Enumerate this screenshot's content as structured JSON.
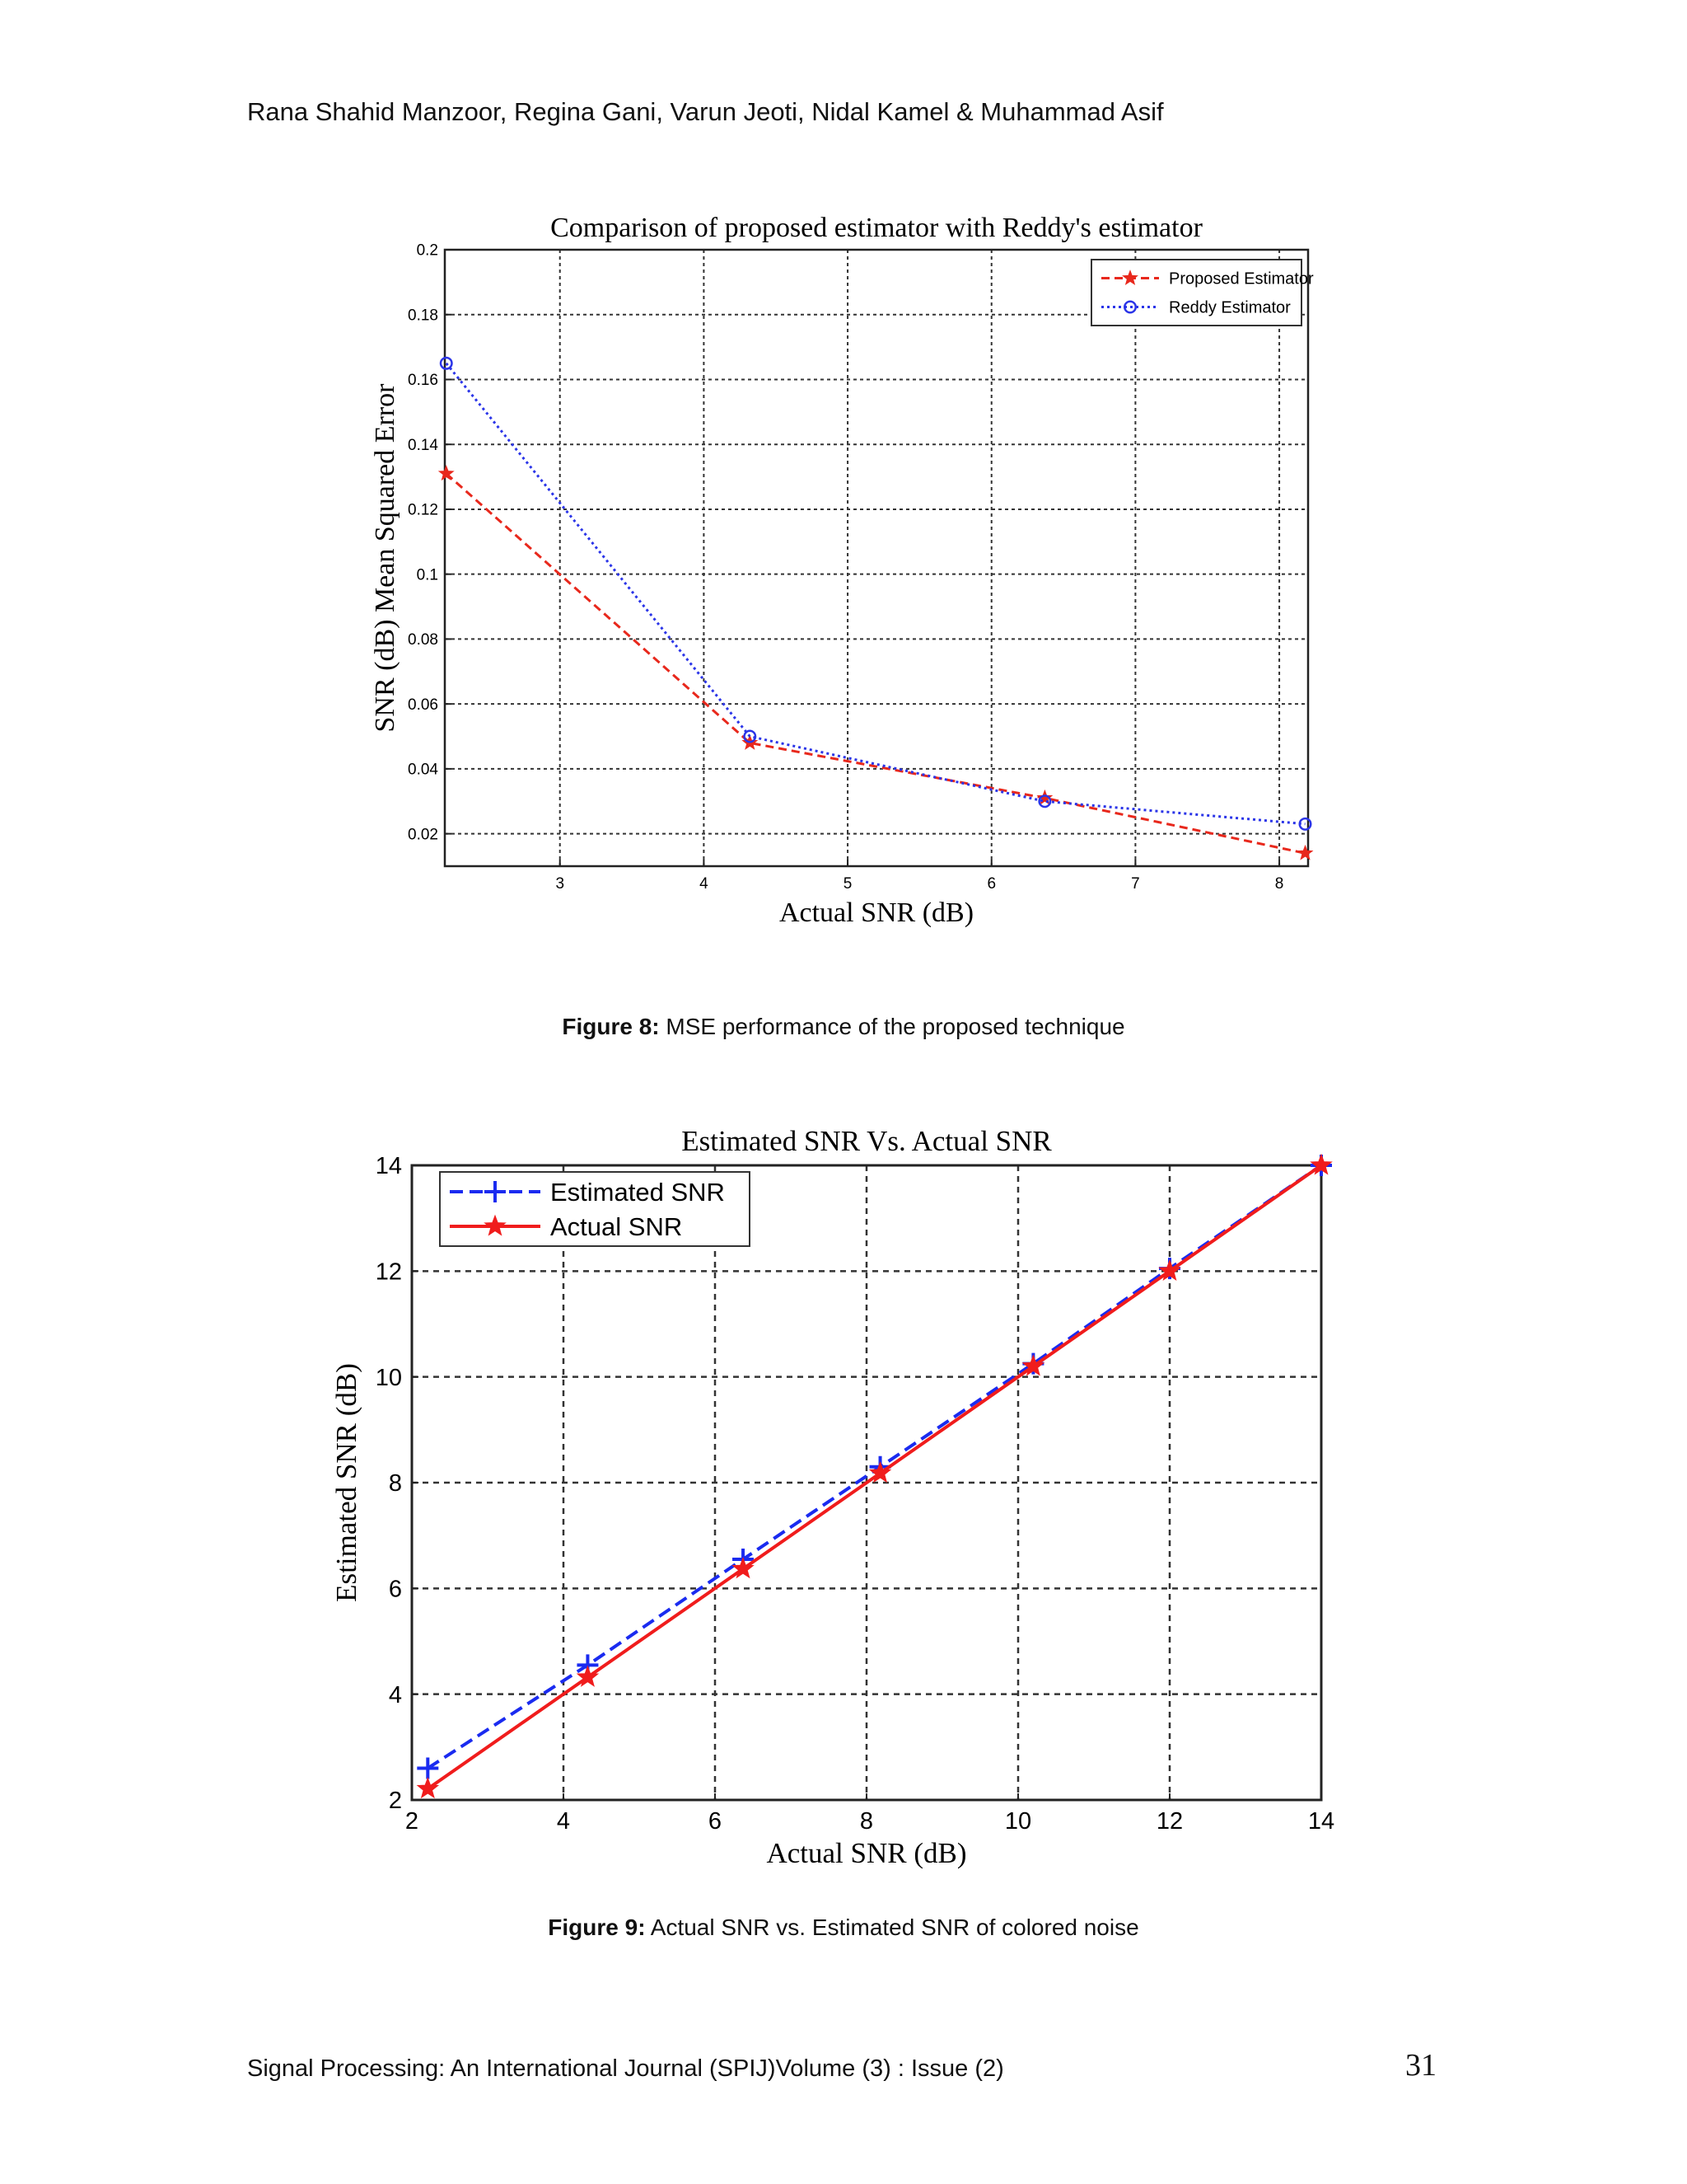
{
  "header": {
    "authors": "Rana Shahid Manzoor, Regina Gani, Varun Jeoti, Nidal Kamel & Muhammad Asif"
  },
  "figure8": {
    "caption_label": "Figure 8:",
    "caption_text": " MSE performance of the proposed technique"
  },
  "figure9": {
    "caption_label": "Figure 9:",
    "caption_text": " Actual SNR vs.  Estimated SNR of colored noise"
  },
  "footer": {
    "journal": "Signal Processing: An International Journal (SPIJ)Volume (3) : Issue (2)",
    "page_number": "31"
  },
  "chart_data": [
    {
      "type": "line",
      "title": "Comparison of proposed estimator with Reddy's estimator",
      "xlabel": "Actual SNR (dB)",
      "ylabel": "SNR (dB) Mean Squared Error",
      "xlim": [
        2.2,
        8.2
      ],
      "ylim": [
        0.01,
        0.2
      ],
      "xticks": [
        3,
        4,
        5,
        6,
        7,
        8
      ],
      "xtick_labels": [
        "3",
        "4",
        "5",
        "6",
        "7",
        "8"
      ],
      "yticks": [
        0.02,
        0.04,
        0.06,
        0.08,
        0.1,
        0.12,
        0.14,
        0.16,
        0.18,
        0.2
      ],
      "ytick_labels": [
        "0.02",
        "0.04",
        "0.06",
        "0.08",
        "0.1",
        "0.12",
        "0.14",
        "0.16",
        "0.18",
        "0.2"
      ],
      "grid": true,
      "legend_position": "top-right",
      "series": [
        {
          "name": "Proposed Estimator",
          "color": "#e8281c",
          "dash": "dashed",
          "marker": "star",
          "x": [
            2.21,
            4.32,
            6.37,
            8.18
          ],
          "y": [
            0.131,
            0.048,
            0.031,
            0.014
          ]
        },
        {
          "name": "Reddy Estimator",
          "color": "#2b35e8",
          "dash": "dotted",
          "marker": "circle",
          "x": [
            2.21,
            4.32,
            6.37,
            8.18
          ],
          "y": [
            0.165,
            0.05,
            0.03,
            0.023
          ]
        }
      ]
    },
    {
      "type": "line",
      "title": "Estimated SNR Vs. Actual SNR",
      "xlabel": "Actual SNR (dB)",
      "ylabel": "Estimated SNR (dB)",
      "xlim": [
        2,
        14
      ],
      "ylim": [
        2,
        14
      ],
      "xticks": [
        2,
        4,
        6,
        8,
        10,
        12,
        14
      ],
      "xtick_labels": [
        "2",
        "4",
        "6",
        "8",
        "10",
        "12",
        "14"
      ],
      "yticks": [
        2,
        4,
        6,
        8,
        10,
        12,
        14
      ],
      "ytick_labels": [
        "2",
        "4",
        "6",
        "8",
        "10",
        "12",
        "14"
      ],
      "grid": true,
      "legend_position": "top-left",
      "series": [
        {
          "name": "Estimated SNR",
          "color": "#1a2bf0",
          "dash": "dashed",
          "marker": "plus",
          "x": [
            2.21,
            4.32,
            6.37,
            8.18,
            10.2,
            12.0,
            14.0
          ],
          "y": [
            2.6,
            4.55,
            6.55,
            8.3,
            10.25,
            12.05,
            14.0
          ]
        },
        {
          "name": "Actual SNR",
          "color": "#f01c1c",
          "dash": "solid",
          "marker": "star",
          "x": [
            2.21,
            4.32,
            6.37,
            8.18,
            10.2,
            12.0,
            14.0
          ],
          "y": [
            2.21,
            4.32,
            6.37,
            8.18,
            10.2,
            12.0,
            14.0
          ]
        }
      ]
    }
  ]
}
